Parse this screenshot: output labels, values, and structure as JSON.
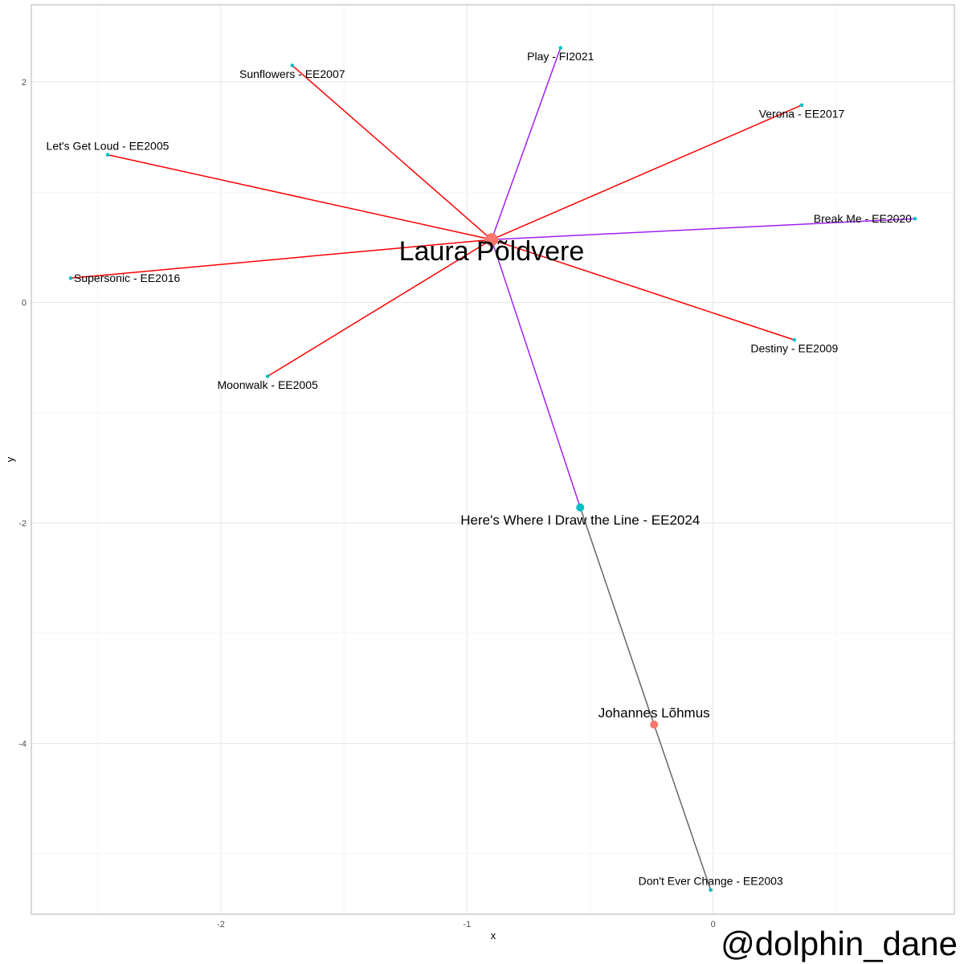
{
  "chart_data": {
    "type": "network",
    "xlabel": "x",
    "ylabel": "y",
    "xlim": [
      -2.77,
      0.98
    ],
    "ylim": [
      -5.55,
      2.7
    ],
    "x_ticks": [
      -2,
      -1,
      0
    ],
    "y_ticks": [
      2,
      0,
      -2,
      -4
    ],
    "colors": {
      "artist": "#F8766D",
      "song": "#00BFC4",
      "edge_red": "#FF0000",
      "edge_purple": "#A020F0",
      "edge_grey": "#666666"
    },
    "nodes": [
      {
        "id": "laura",
        "label": "Laura Põldvere",
        "x": -0.9,
        "y": 0.57,
        "kind": "artist",
        "size": "large",
        "label_pos": "below"
      },
      {
        "id": "johannes",
        "label": "Johannes Lõhmus",
        "x": -0.24,
        "y": -3.83,
        "kind": "artist",
        "size": "medium",
        "label_pos": "above"
      },
      {
        "id": "hwid",
        "label": "Here's Where I Draw the Line - EE2024",
        "x": -0.54,
        "y": -1.86,
        "kind": "song",
        "size": "medium",
        "label_pos": "below"
      },
      {
        "id": "sunflowers",
        "label": "Sunflowers - EE2007",
        "x": -1.71,
        "y": 2.15,
        "kind": "song",
        "size": "small",
        "label_pos": "below"
      },
      {
        "id": "play",
        "label": "Play - FI2021",
        "x": -0.62,
        "y": 2.31,
        "kind": "song",
        "size": "small",
        "label_pos": "below"
      },
      {
        "id": "verona",
        "label": "Verona - EE2017",
        "x": 0.36,
        "y": 1.79,
        "kind": "song",
        "size": "small",
        "label_pos": "below"
      },
      {
        "id": "letsgetloud",
        "label": "Let's Get Loud - EE2005",
        "x": -2.46,
        "y": 1.34,
        "kind": "song",
        "size": "small",
        "label_pos": "above"
      },
      {
        "id": "breakme",
        "label": "Break Me - EE2020",
        "x": 0.82,
        "y": 0.76,
        "kind": "song",
        "size": "small",
        "label_pos": "left"
      },
      {
        "id": "supersonic",
        "label": "Supersonic - EE2016",
        "x": -2.61,
        "y": 0.22,
        "kind": "song",
        "size": "small",
        "label_pos": "right"
      },
      {
        "id": "destiny",
        "label": "Destiny - EE2009",
        "x": 0.33,
        "y": -0.34,
        "kind": "song",
        "size": "small",
        "label_pos": "below"
      },
      {
        "id": "moonwalk",
        "label": "Moonwalk - EE2005",
        "x": -1.81,
        "y": -0.67,
        "kind": "song",
        "size": "small",
        "label_pos": "below"
      },
      {
        "id": "dontever",
        "label": "Don't Ever Change - EE2003",
        "x": -0.01,
        "y": -5.33,
        "kind": "song",
        "size": "small",
        "label_pos": "above"
      }
    ],
    "edges": [
      {
        "from": "laura",
        "to": "sunflowers",
        "color": "red"
      },
      {
        "from": "laura",
        "to": "play",
        "color": "purple"
      },
      {
        "from": "laura",
        "to": "verona",
        "color": "red"
      },
      {
        "from": "laura",
        "to": "letsgetloud",
        "color": "red"
      },
      {
        "from": "laura",
        "to": "breakme",
        "color": "purple"
      },
      {
        "from": "laura",
        "to": "supersonic",
        "color": "red"
      },
      {
        "from": "laura",
        "to": "destiny",
        "color": "red"
      },
      {
        "from": "laura",
        "to": "moonwalk",
        "color": "red"
      },
      {
        "from": "laura",
        "to": "hwid",
        "color": "purple"
      },
      {
        "from": "hwid",
        "to": "johannes",
        "color": "grey"
      },
      {
        "from": "johannes",
        "to": "dontever",
        "color": "grey"
      }
    ]
  },
  "watermark": "@dolphin_dane"
}
